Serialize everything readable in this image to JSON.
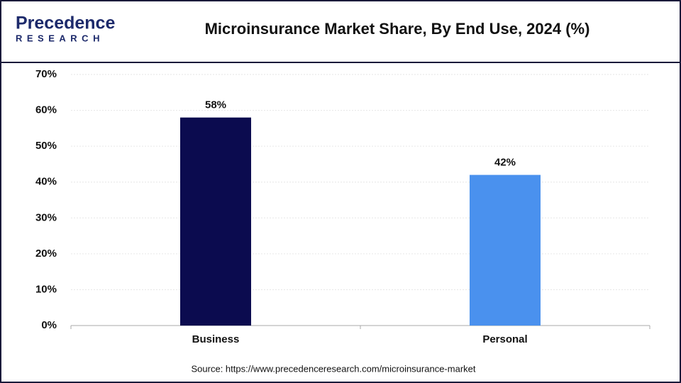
{
  "logo": {
    "name": "Precedence",
    "sub": "RESEARCH"
  },
  "chart_data": {
    "type": "bar",
    "title": "Microinsurance Market Share, By End Use, 2024 (%)",
    "categories": [
      "Business",
      "Personal"
    ],
    "values": [
      58,
      42
    ],
    "value_labels": [
      "58%",
      "42%"
    ],
    "colors": [
      "#0b0b4f",
      "#4a91ee"
    ],
    "ylim": [
      0,
      70
    ],
    "yticks": [
      {
        "value": 0,
        "label": "0%"
      },
      {
        "value": 10,
        "label": "10%"
      },
      {
        "value": 20,
        "label": "20%"
      },
      {
        "value": 30,
        "label": "30%"
      },
      {
        "value": 40,
        "label": "40%"
      },
      {
        "value": 50,
        "label": "50%"
      },
      {
        "value": 60,
        "label": "60%"
      },
      {
        "value": 70,
        "label": "70%"
      }
    ],
    "grid": true,
    "source": "Source: https://www.precedenceresearch.com/microinsurance-market"
  }
}
